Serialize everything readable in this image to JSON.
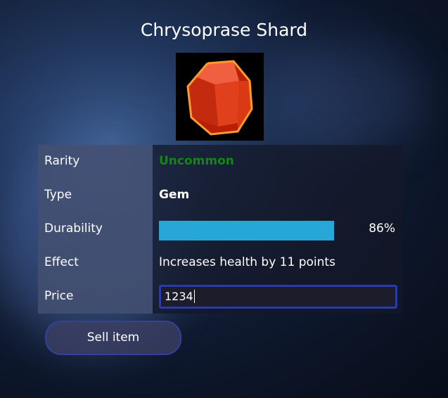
{
  "item": {
    "name": "Chrysoprase Shard",
    "icon": "red-gem-icon"
  },
  "stats": [
    {
      "label": "Rarity",
      "value": "Uncommon",
      "color": "#118811"
    },
    {
      "label": "Type",
      "value": "Gem"
    },
    {
      "label": "Durability",
      "value": "86%",
      "progress": 0.86
    },
    {
      "label": "Effect",
      "value": "Increases health by 11 points"
    },
    {
      "label": "Price",
      "value": "1234"
    }
  ],
  "actions": {
    "sell_label": "Sell item"
  }
}
